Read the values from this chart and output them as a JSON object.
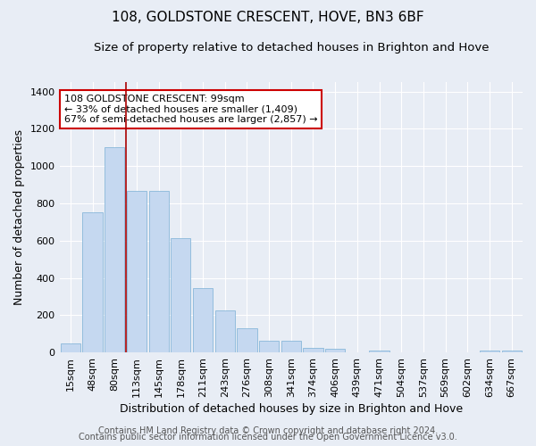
{
  "title": "108, GOLDSTONE CRESCENT, HOVE, BN3 6BF",
  "subtitle": "Size of property relative to detached houses in Brighton and Hove",
  "xlabel": "Distribution of detached houses by size in Brighton and Hove",
  "ylabel": "Number of detached properties",
  "footer1": "Contains HM Land Registry data © Crown copyright and database right 2024.",
  "footer2": "Contains public sector information licensed under the Open Government Licence v3.0.",
  "categories": [
    "15sqm",
    "48sqm",
    "80sqm",
    "113sqm",
    "145sqm",
    "178sqm",
    "211sqm",
    "243sqm",
    "276sqm",
    "308sqm",
    "341sqm",
    "374sqm",
    "406sqm",
    "439sqm",
    "471sqm",
    "504sqm",
    "537sqm",
    "569sqm",
    "602sqm",
    "634sqm",
    "667sqm"
  ],
  "bar_heights": [
    50,
    750,
    1100,
    865,
    865,
    615,
    345,
    225,
    130,
    65,
    65,
    25,
    20,
    0,
    10,
    0,
    0,
    0,
    0,
    10,
    10
  ],
  "bar_color": "#c5d8f0",
  "bar_edge_color": "#7aafd4",
  "vline_color": "#aa0000",
  "annotation_text": "108 GOLDSTONE CRESCENT: 99sqm\n← 33% of detached houses are smaller (1,409)\n67% of semi-detached houses are larger (2,857) →",
  "annotation_box_color": "#ffffff",
  "annotation_border_color": "#cc0000",
  "ylim": [
    0,
    1450
  ],
  "yticks": [
    0,
    200,
    400,
    600,
    800,
    1000,
    1200,
    1400
  ],
  "bg_color": "#e8edf5",
  "plot_bg_color": "#e8edf5",
  "grid_color": "#ffffff",
  "title_fontsize": 11,
  "subtitle_fontsize": 9.5,
  "xlabel_fontsize": 9,
  "ylabel_fontsize": 9,
  "tick_fontsize": 8,
  "footer_fontsize": 7
}
